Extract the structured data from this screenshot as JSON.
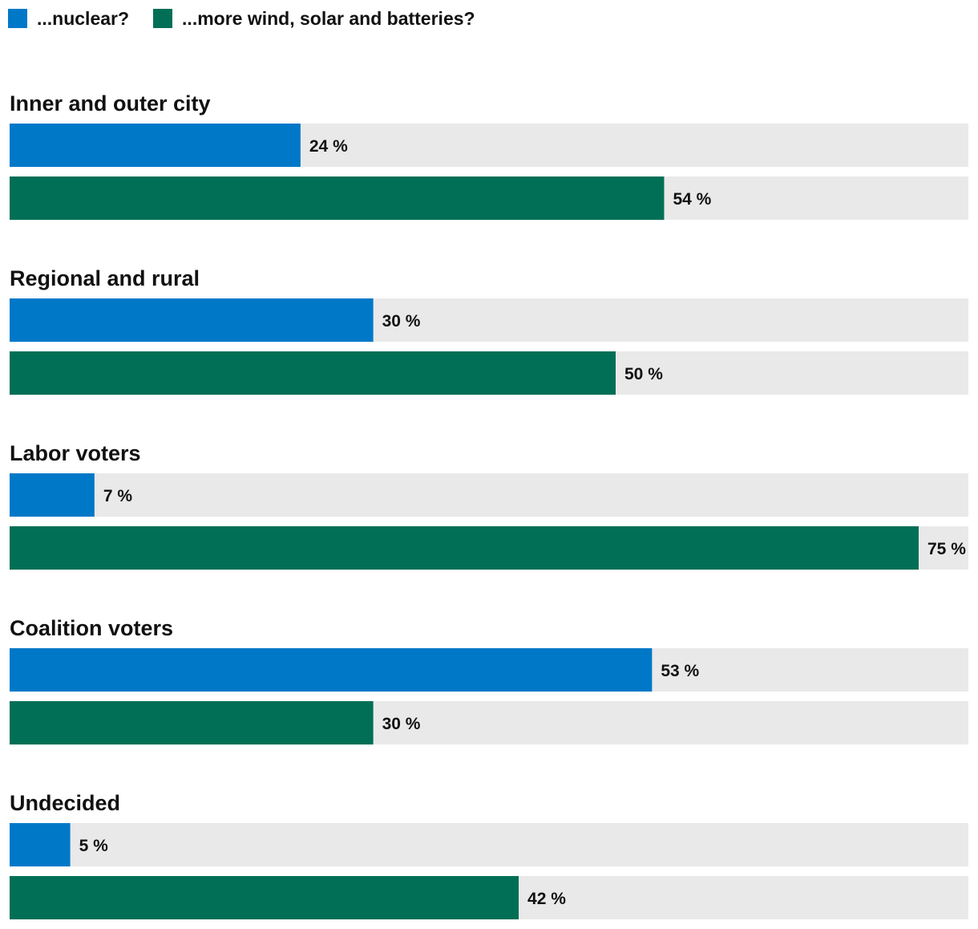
{
  "chart_data": {
    "type": "bar",
    "orientation": "horizontal",
    "title": "",
    "xlabel": "",
    "ylabel": "",
    "xlim": [
      0,
      75
    ],
    "grid": false,
    "legend_position": "top-left",
    "value_suffix": " %",
    "series": [
      {
        "name": "...nuclear?",
        "color": "#0078c8",
        "values": [
          24,
          30,
          7,
          53,
          5
        ]
      },
      {
        "name": "...more wind, solar and batteries?",
        "color": "#006f56",
        "values": [
          54,
          50,
          75,
          30,
          42
        ]
      }
    ],
    "categories": [
      "Inner and outer city",
      "Regional and rural",
      "Labor voters",
      "Coalition voters",
      "Undecided"
    ],
    "track_color": "#e9e9e9"
  }
}
